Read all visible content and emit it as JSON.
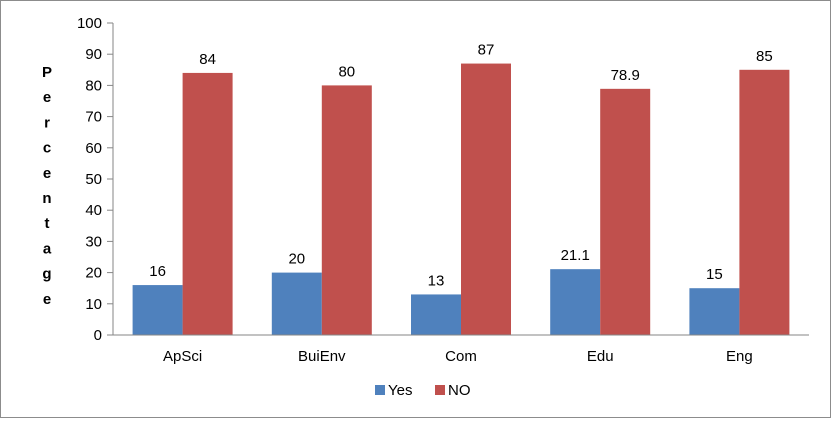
{
  "chart_data": {
    "type": "bar",
    "categories": [
      "ApSci",
      "BuiEnv",
      "Com",
      "Edu",
      "Eng"
    ],
    "series": [
      {
        "name": "Yes",
        "values": [
          16,
          20,
          13,
          21.1,
          15
        ],
        "color": "#4f81bd"
      },
      {
        "name": "NO",
        "values": [
          84,
          80,
          87,
          78.9,
          85
        ],
        "color": "#c0504d"
      }
    ],
    "data_labels": [
      [
        "16",
        "20",
        "13",
        "21.1",
        "15"
      ],
      [
        "84",
        "80",
        "87",
        "78.9",
        "85"
      ]
    ],
    "ylabel": "Percentage",
    "ylabel_letters": [
      "P",
      "e",
      "r",
      "c",
      "e",
      "n",
      "t",
      "a",
      "g",
      "e"
    ],
    "ylim": [
      0,
      100
    ],
    "yticks": [
      "0",
      "10",
      "20",
      "30",
      "40",
      "50",
      "60",
      "70",
      "80",
      "90",
      "100"
    ],
    "grid": false,
    "legend_position": "bottom"
  }
}
